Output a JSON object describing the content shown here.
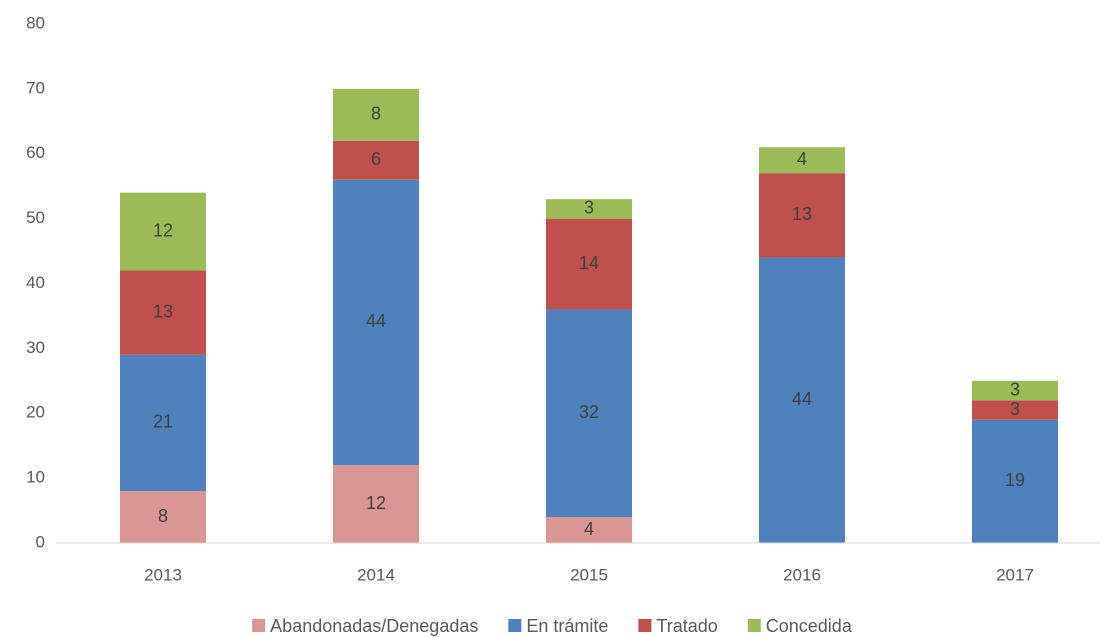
{
  "chart_data": {
    "type": "stacked_bar",
    "categories": [
      "2013",
      "2014",
      "2015",
      "2016",
      "2017"
    ],
    "series": [
      {
        "name": "Abandonadas/Denegadas",
        "color": "#d99694",
        "values": [
          8,
          12,
          4,
          0,
          0
        ]
      },
      {
        "name": "En trámite",
        "color": "#4f81bd",
        "values": [
          21,
          44,
          32,
          44,
          19
        ]
      },
      {
        "name": "Tratado",
        "color": "#c0504d",
        "values": [
          13,
          6,
          14,
          13,
          3
        ]
      },
      {
        "name": "Concedida",
        "color": "#9bbb59",
        "values": [
          12,
          8,
          3,
          4,
          3
        ]
      }
    ],
    "ylim": [
      0,
      80
    ],
    "yticks": [
      0,
      10,
      20,
      30,
      40,
      50,
      60,
      70,
      80
    ],
    "grid": false,
    "legend": "bottom"
  }
}
